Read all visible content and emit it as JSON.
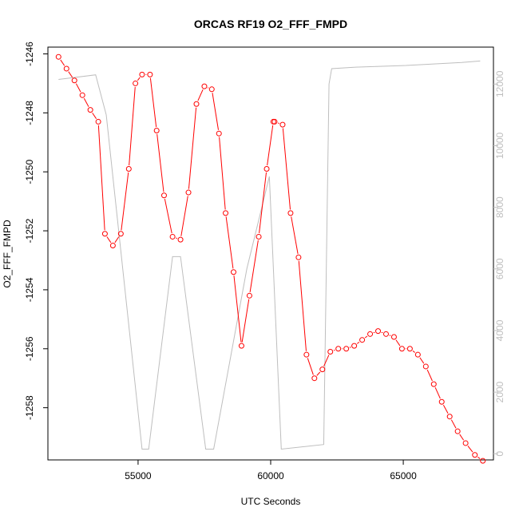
{
  "chart_data": {
    "type": "line",
    "title": "ORCAS RF19 O2_FFF_FMPD",
    "xlabel": "UTC Seconds",
    "ylabel": "O2_FFF_FMPD",
    "xlim": [
      51600,
      68400
    ],
    "ylim": [
      -1259.77,
      -1245.77
    ],
    "y2lim": [
      -200,
      13200
    ],
    "x_ticks": [
      55000,
      60000,
      65000
    ],
    "y_ticks": [
      -1258,
      -1256,
      -1254,
      -1252,
      -1250,
      -1248,
      -1246
    ],
    "y2_ticks": [
      0,
      2000,
      4000,
      6000,
      8000,
      10000,
      12000
    ],
    "colors": {
      "primary": "#ff0000",
      "secondary": "#bebebe",
      "axis": "#000000"
    },
    "series": [
      {
        "role": "primary",
        "marker": "open-circle",
        "x": [
          52000,
          52300,
          52600,
          52900,
          53200,
          53500,
          53750,
          54050,
          54350,
          54650,
          54900,
          55150,
          55450,
          55700,
          55980,
          56300,
          56600,
          56900,
          57200,
          57500,
          57780,
          58050,
          58300,
          58600,
          58900,
          59200,
          59550,
          59850,
          60100,
          60150,
          60450,
          60750,
          61050,
          61350,
          61650,
          61950,
          62250,
          62550,
          62850,
          63150,
          63450,
          63750,
          64050,
          64350,
          64650,
          64950,
          65250,
          65550,
          65850,
          66150,
          66450,
          66750,
          67050,
          67350,
          67700,
          68000
        ],
        "y": [
          -1246.1,
          -1246.5,
          -1246.9,
          -1247.4,
          -1247.9,
          -1248.3,
          -1252.1,
          -1252.5,
          -1252.1,
          -1249.9,
          -1247.0,
          -1246.7,
          -1246.7,
          -1248.6,
          -1250.8,
          -1252.2,
          -1252.3,
          -1250.7,
          -1247.7,
          -1247.1,
          -1247.2,
          -1248.7,
          -1251.4,
          -1253.4,
          -1255.9,
          -1254.2,
          -1252.2,
          -1249.9,
          -1248.3,
          -1248.3,
          -1248.4,
          -1251.4,
          -1252.9,
          -1256.2,
          -1257.0,
          -1256.7,
          -1256.1,
          -1256.0,
          -1256.0,
          -1255.9,
          -1255.7,
          -1255.5,
          -1255.4,
          -1255.5,
          -1255.6,
          -1256.0,
          -1256.0,
          -1256.2,
          -1256.6,
          -1257.2,
          -1257.8,
          -1258.3,
          -1258.8,
          -1259.2,
          -1259.6,
          -1259.8
        ]
      },
      {
        "role": "secondary",
        "axis": "right",
        "x": [
          52000,
          53400,
          53800,
          55150,
          55400,
          56300,
          56600,
          57550,
          57850,
          59100,
          59950,
          60400,
          62000,
          62200,
          62300,
          63200,
          65000,
          67200,
          67900
        ],
        "y": [
          12150,
          12300,
          11000,
          150,
          150,
          6400,
          6400,
          150,
          150,
          6000,
          9000,
          150,
          300,
          12000,
          12500,
          12550,
          12600,
          12700,
          12750
        ]
      }
    ]
  }
}
